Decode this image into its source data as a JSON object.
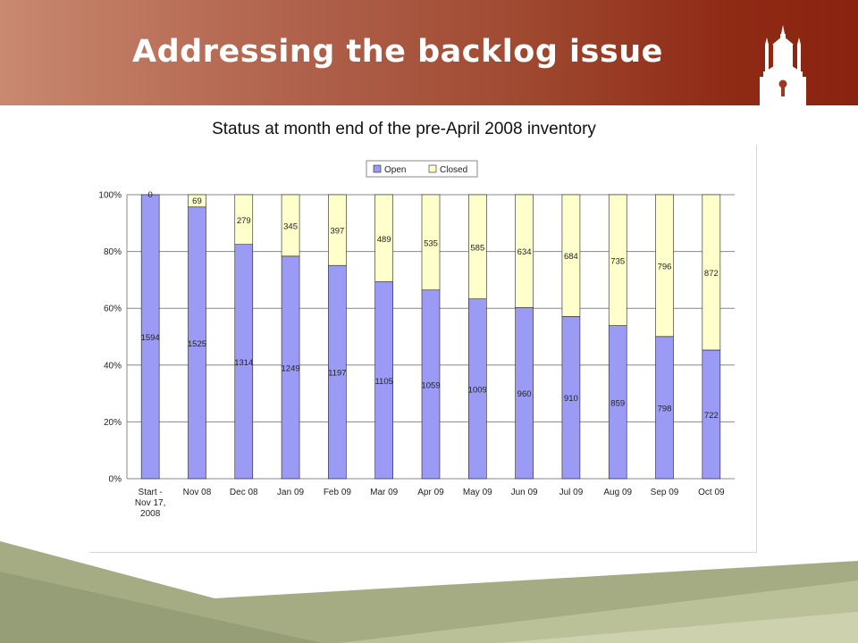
{
  "slide": {
    "title": "Addressing the backlog issue",
    "subtitle": "Status at month end of the pre-April 2008 inventory"
  },
  "colors": {
    "open": "#9b9bf5",
    "closed": "#ffffcc",
    "banner": "#9a3a22",
    "footer": "#a5ac84"
  },
  "icons": {
    "logo": "tower-icon"
  },
  "chart_data": {
    "type": "bar",
    "stacked": "percent",
    "categories": [
      "Start - Nov 17, 2008",
      "Nov 08",
      "Dec 08",
      "Jan 09",
      "Feb 09",
      "Mar 09",
      "Apr 09",
      "May 09",
      "Jun 09",
      "Jul 09",
      "Aug 09",
      "Sep 09",
      "Oct 09"
    ],
    "series": [
      {
        "name": "Open",
        "values": [
          1594,
          1525,
          1314,
          1249,
          1197,
          1105,
          1059,
          1009,
          960,
          910,
          859,
          798,
          722
        ]
      },
      {
        "name": "Closed",
        "values": [
          0,
          69,
          279,
          345,
          397,
          489,
          535,
          585,
          634,
          684,
          735,
          796,
          872
        ]
      }
    ],
    "yticks": [
      "0%",
      "20%",
      "40%",
      "60%",
      "80%",
      "100%"
    ],
    "ylim": [
      0,
      100
    ],
    "legend": "top",
    "grid": true
  }
}
